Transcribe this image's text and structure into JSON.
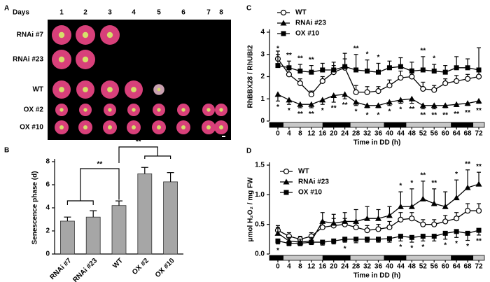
{
  "photo": {
    "panel": "A",
    "header": "Days",
    "columns": [
      1,
      2,
      3,
      4,
      5,
      6,
      7,
      8
    ],
    "rows": [
      "RNAi #7",
      "RNAi #23",
      "WT",
      "OX #2",
      "OX #10"
    ]
  },
  "chart_data": [
    {
      "panel": "B",
      "type": "bar",
      "categories": [
        "RNAi #7",
        "RNAi #23",
        "WT",
        "OX #2",
        "OX #10"
      ],
      "values": [
        2.85,
        3.2,
        4.2,
        6.95,
        6.25
      ],
      "errors": [
        0.35,
        0.55,
        0.4,
        0.55,
        0.8
      ],
      "color": "#a6a6a6",
      "ylabel": "Senescence phase (d)",
      "ylim": [
        0,
        8
      ],
      "yticks": [
        0,
        2,
        4,
        6,
        8
      ],
      "annotations": [
        "**",
        "**"
      ]
    },
    {
      "panel": "C",
      "type": "line",
      "ylabel": "RhBBX28 / RhUBI2",
      "xlabel": "Time in DD (h)",
      "x": [
        0,
        4,
        8,
        12,
        16,
        20,
        24,
        28,
        32,
        36,
        40,
        44,
        48,
        52,
        56,
        60,
        64,
        68,
        72
      ],
      "xlim": [
        -3,
        74
      ],
      "xticks": [
        0,
        4,
        8,
        12,
        16,
        20,
        24,
        28,
        32,
        36,
        40,
        44,
        48,
        52,
        56,
        60,
        64,
        68,
        72
      ],
      "ylim": [
        0,
        4
      ],
      "yticks": [
        0,
        1,
        2,
        3,
        4
      ],
      "series": [
        {
          "name": "WT",
          "marker": "circle-open",
          "color": "#000000",
          "values": [
            2.8,
            2.1,
            1.7,
            1.2,
            1.8,
            2.2,
            2.4,
            1.3,
            1.3,
            1.35,
            1.6,
            1.95,
            2.0,
            1.45,
            1.4,
            1.7,
            1.8,
            1.9,
            2.0
          ],
          "errors": [
            0.35,
            0.3,
            0.2,
            0.15,
            0.2,
            0.3,
            0.4,
            0.3,
            0.25,
            0.2,
            0.25,
            0.3,
            0.35,
            0.3,
            0.2,
            0.2,
            0.25,
            0.2,
            0.3
          ]
        },
        {
          "name": "RNAi #23",
          "marker": "triangle",
          "color": "#000000",
          "values": [
            1.2,
            0.95,
            0.75,
            0.75,
            0.95,
            1.15,
            1.2,
            0.85,
            0.7,
            0.7,
            0.85,
            0.95,
            1.0,
            0.7,
            0.7,
            0.7,
            0.75,
            0.8,
            0.9
          ],
          "errors": [
            0.3,
            0.2,
            0.15,
            0.15,
            0.2,
            0.3,
            0.2,
            0.15,
            0.1,
            0.1,
            0.15,
            0.15,
            0.2,
            0.15,
            0.15,
            0.1,
            0.1,
            0.1,
            0.1
          ],
          "significance": [
            "*",
            "*",
            "**",
            "**",
            "*",
            "**",
            "**",
            "*",
            "*",
            "*",
            "*",
            "*",
            "**",
            "**",
            "**",
            "**",
            "**",
            "**",
            "**"
          ]
        },
        {
          "name": "OX #10",
          "marker": "square",
          "color": "#000000",
          "values": [
            2.5,
            2.4,
            2.25,
            2.2,
            2.3,
            2.3,
            2.45,
            2.3,
            2.25,
            2.2,
            2.4,
            2.45,
            2.25,
            2.3,
            2.25,
            2.2,
            2.4,
            2.4,
            2.3
          ],
          "errors": [
            0.5,
            0.3,
            0.3,
            0.3,
            0.3,
            0.35,
            0.6,
            0.7,
            0.5,
            0.4,
            0.3,
            0.4,
            0.4,
            0.6,
            0.3,
            0.3,
            0.5,
            0.4,
            1.0
          ],
          "significance": [
            "*",
            "**",
            "**",
            "**",
            null,
            null,
            null,
            "**",
            "*",
            "*",
            null,
            null,
            null,
            "**",
            "*",
            null,
            null,
            null,
            null
          ]
        }
      ]
    },
    {
      "panel": "D",
      "type": "line",
      "ylabel": "μmol H₂O₂ / mg FW",
      "xlabel": "Time in DD (h)",
      "x": [
        0,
        4,
        8,
        12,
        16,
        20,
        24,
        28,
        32,
        36,
        40,
        44,
        48,
        52,
        56,
        60,
        64,
        68,
        72
      ],
      "xlim": [
        -3,
        74
      ],
      "xticks": [
        0,
        4,
        8,
        12,
        16,
        20,
        24,
        28,
        32,
        36,
        40,
        44,
        48,
        52,
        56,
        60,
        64,
        68,
        72
      ],
      "ylim": [
        0,
        1.5
      ],
      "yticks": [
        {
          "value": 0,
          "label": "0.0"
        },
        0.5,
        {
          "value": 1,
          "label": "1.0"
        },
        1.5
      ],
      "series": [
        {
          "name": "WT",
          "marker": "circle-open",
          "color": "#000000",
          "values": [
            0.4,
            0.3,
            0.25,
            0.3,
            0.45,
            0.48,
            0.5,
            0.45,
            0.4,
            0.42,
            0.45,
            0.58,
            0.6,
            0.5,
            0.5,
            0.55,
            0.6,
            0.73,
            0.73
          ],
          "errors": [
            0.08,
            0.06,
            0.05,
            0.06,
            0.1,
            0.12,
            0.1,
            0.1,
            0.08,
            0.08,
            0.1,
            0.12,
            0.1,
            0.08,
            0.08,
            0.1,
            0.1,
            0.12,
            0.12
          ]
        },
        {
          "name": "RNAi #23",
          "marker": "triangle",
          "color": "#000000",
          "values": [
            0.35,
            0.22,
            0.2,
            0.22,
            0.55,
            0.52,
            0.55,
            0.55,
            0.6,
            0.6,
            0.65,
            0.8,
            0.8,
            0.93,
            0.85,
            0.8,
            0.95,
            1.12,
            1.18
          ],
          "errors": [
            0.1,
            0.06,
            0.05,
            0.06,
            0.15,
            0.15,
            0.15,
            0.2,
            0.2,
            0.15,
            0.15,
            0.25,
            0.3,
            0.3,
            0.25,
            0.25,
            0.3,
            0.3,
            0.2
          ],
          "significance": [
            null,
            null,
            null,
            null,
            null,
            null,
            null,
            null,
            null,
            null,
            null,
            "*",
            "*",
            "**",
            "**",
            null,
            "*",
            "**",
            "**"
          ]
        },
        {
          "name": "OX #10",
          "marker": "square",
          "color": "#000000",
          "values": [
            0.22,
            0.18,
            0.18,
            0.2,
            0.2,
            0.22,
            0.25,
            0.25,
            0.25,
            0.25,
            0.26,
            0.3,
            0.28,
            0.3,
            0.3,
            0.35,
            0.38,
            0.35,
            0.4
          ],
          "errors": [
            0.05,
            0.04,
            0.04,
            0.04,
            0.05,
            0.05,
            0.05,
            0.06,
            0.05,
            0.05,
            0.06,
            0.08,
            0.08,
            0.08,
            0.08,
            0.1,
            0.1,
            0.12,
            0.08
          ],
          "significance": [
            "*",
            null,
            null,
            null,
            null,
            null,
            "*",
            null,
            null,
            null,
            null,
            "*",
            "*",
            "*",
            null,
            "*",
            "*",
            "*",
            "**"
          ]
        }
      ]
    }
  ]
}
